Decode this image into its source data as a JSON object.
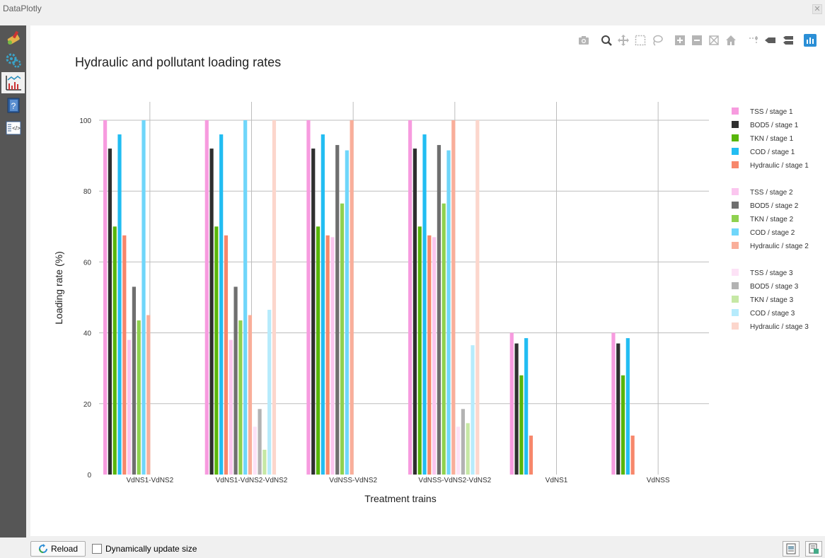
{
  "window": {
    "title": "DataPlotly",
    "close_icon": "close-icon"
  },
  "sidebar": {
    "items": [
      {
        "name": "style-icon",
        "active": false
      },
      {
        "name": "gears-icon",
        "active": false
      },
      {
        "name": "plot-icon",
        "active": true
      },
      {
        "name": "help-icon",
        "active": false
      },
      {
        "name": "code-icon",
        "active": false
      }
    ]
  },
  "toolbar": {
    "icons": [
      "camera-icon",
      "zoom-icon",
      "pan-icon",
      "box-select-icon",
      "lasso-select-icon",
      "zoom-in-icon",
      "zoom-out-icon",
      "autoscale-icon",
      "reset-axes-icon",
      "spike-lines-icon",
      "hover-closest-icon",
      "hover-compare-icon",
      "plotly-logo-icon"
    ]
  },
  "bottom": {
    "reload_label": "Reload",
    "dynamic_label": "Dynamically update size",
    "dynamic_checked": false
  },
  "colors": {
    "TSS": [
      "#f79bdf",
      "#fbc6ef",
      "#fde2f6"
    ],
    "BOD5": [
      "#2f2f2f",
      "#6f6f6f",
      "#b3b3b3"
    ],
    "TKN": [
      "#58b60b",
      "#8fd14f",
      "#c6e8a5"
    ],
    "COD": [
      "#22bdf2",
      "#6fd6fa",
      "#b6ebfc"
    ],
    "Hydraulic": [
      "#f7876b",
      "#f9ae9a",
      "#fcd6cc"
    ]
  },
  "chart_data": {
    "type": "bar",
    "title": "Hydraulic and pollutant loading rates",
    "xlabel": "Treatment trains",
    "ylabel": "Loading rate (%)",
    "ylim": [
      0,
      100
    ],
    "yticks": [
      0,
      20,
      40,
      60,
      80,
      100
    ],
    "grid": true,
    "legend_position": "right",
    "categories": [
      "VdNS1-VdNS2",
      "VdNS1-VdNS2-VdNS2",
      "VdNSS-VdNS2",
      "VdNSS-VdNS2-VdNS2",
      "VdNS1",
      "VdNSS"
    ],
    "series": [
      {
        "name": "TSS / stage 1",
        "group": "TSS",
        "stage": 1,
        "values": [
          100,
          100,
          100,
          100,
          40,
          40
        ]
      },
      {
        "name": "BOD5 / stage 1",
        "group": "BOD5",
        "stage": 1,
        "values": [
          92,
          92,
          92,
          92,
          37,
          37
        ]
      },
      {
        "name": "TKN / stage 1",
        "group": "TKN",
        "stage": 1,
        "values": [
          70,
          70,
          70,
          70,
          28,
          28
        ]
      },
      {
        "name": "COD / stage 1",
        "group": "COD",
        "stage": 1,
        "values": [
          96,
          96,
          96,
          96,
          38.5,
          38.5
        ]
      },
      {
        "name": "Hydraulic / stage 1",
        "group": "Hydraulic",
        "stage": 1,
        "values": [
          67.5,
          67.5,
          67.5,
          67.5,
          11,
          11
        ]
      },
      {
        "name": "TSS / stage 2",
        "group": "TSS",
        "stage": 2,
        "values": [
          38,
          38,
          67,
          67,
          null,
          null
        ]
      },
      {
        "name": "BOD5 / stage 2",
        "group": "BOD5",
        "stage": 2,
        "values": [
          53,
          53,
          93,
          93,
          null,
          null
        ]
      },
      {
        "name": "TKN / stage 2",
        "group": "TKN",
        "stage": 2,
        "values": [
          43.5,
          43.5,
          76.5,
          76.5,
          null,
          null
        ]
      },
      {
        "name": "COD / stage 2",
        "group": "COD",
        "stage": 2,
        "values": [
          100,
          100,
          91.5,
          91.5,
          null,
          null
        ]
      },
      {
        "name": "Hydraulic / stage 2",
        "group": "Hydraulic",
        "stage": 2,
        "values": [
          45,
          45,
          100,
          100,
          null,
          null
        ]
      },
      {
        "name": "TSS / stage 3",
        "group": "TSS",
        "stage": 3,
        "values": [
          null,
          13.5,
          null,
          13.5,
          null,
          null
        ]
      },
      {
        "name": "BOD5 / stage 3",
        "group": "BOD5",
        "stage": 3,
        "values": [
          null,
          18.5,
          null,
          18.5,
          null,
          null
        ]
      },
      {
        "name": "TKN / stage 3",
        "group": "TKN",
        "stage": 3,
        "values": [
          null,
          7,
          null,
          14.5,
          null,
          null
        ]
      },
      {
        "name": "COD / stage 3",
        "group": "COD",
        "stage": 3,
        "values": [
          null,
          46.5,
          null,
          36.5,
          null,
          null
        ]
      },
      {
        "name": "Hydraulic / stage 3",
        "group": "Hydraulic",
        "stage": 3,
        "values": [
          null,
          100,
          null,
          100,
          null,
          null
        ]
      }
    ]
  }
}
